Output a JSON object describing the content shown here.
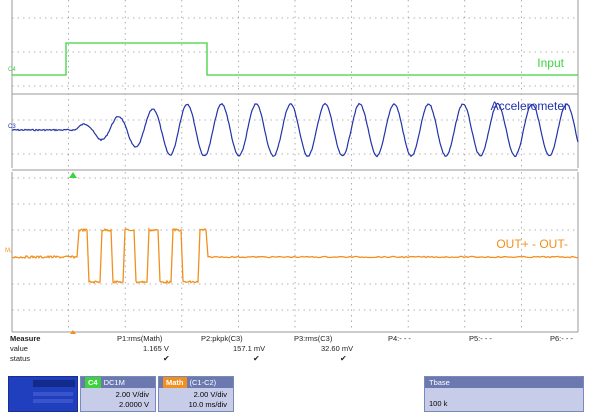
{
  "channels": {
    "input": {
      "marker": "C4",
      "label": "Input",
      "color": "#3fd23f"
    },
    "accel": {
      "marker": "C3",
      "label": "Accelerometer",
      "color": "#2233aa"
    },
    "math": {
      "marker": "M₂",
      "label": "OUT+ - OUT-",
      "color": "#f0901e"
    }
  },
  "measure": {
    "row_labels": [
      "Measure",
      "value",
      "status"
    ],
    "columns": [
      {
        "name": "P1:rms(Math)",
        "value": "1.165 V",
        "status": "✔"
      },
      {
        "name": "P2:pkpk(C3)",
        "value": "157.1 mV",
        "status": "✔"
      },
      {
        "name": "P3:rms(C3)",
        "value": "32.60 mV",
        "status": "✔"
      },
      {
        "name": "P4:- - -",
        "value": "",
        "status": ""
      },
      {
        "name": "P5:- - -",
        "value": "",
        "status": ""
      },
      {
        "name": "P6:- - -",
        "value": "",
        "status": ""
      }
    ]
  },
  "descriptors": {
    "c4": {
      "tag": "C4",
      "desc": "DC1M",
      "vdiv": "2.00 V/div",
      "offset": "2.0000 V"
    },
    "math": {
      "tag": "Math",
      "desc": "(C1-C2)",
      "vdiv": "2.00 V/div",
      "tdiv": "10.0 ms/div"
    },
    "tbase": {
      "tag": "Tbase",
      "line1": "100 k"
    }
  },
  "colors": {
    "grid": "#9a9a9a",
    "bg": "#ffffff",
    "box_blue": "#1f3fbf"
  }
}
